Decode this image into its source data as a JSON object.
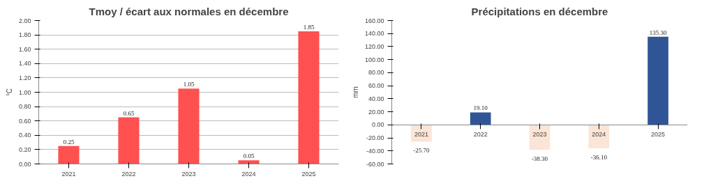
{
  "chart_data": [
    {
      "type": "bar",
      "title": "Tmoy / écart aux normales en décembre",
      "ylabel": "°C",
      "categories": [
        "2021",
        "2022",
        "2023",
        "2024",
        "2025"
      ],
      "values": [
        0.25,
        0.65,
        1.05,
        0.05,
        1.85
      ],
      "color": "#ff5050",
      "value_labels": [
        "0.25",
        "0.65",
        "1.05",
        "0.05",
        "1.85"
      ],
      "ylim": [
        0,
        2
      ],
      "yticks": [
        {
          "value": 0,
          "label": "0.00"
        },
        {
          "value": 0.2,
          "label": "0.20"
        },
        {
          "value": 0.4,
          "label": "0.40"
        },
        {
          "value": 0.6,
          "label": "0.60"
        },
        {
          "value": 0.8,
          "label": "0.80"
        },
        {
          "value": 1,
          "label": "1.00"
        },
        {
          "value": 1.2,
          "label": "1.20"
        },
        {
          "value": 1.4,
          "label": "1.40"
        },
        {
          "value": 1.6,
          "label": "1.60"
        },
        {
          "value": 1.8,
          "label": "1.80"
        },
        {
          "value": 2,
          "label": "2.00"
        }
      ],
      "grid": "y"
    },
    {
      "type": "bar",
      "title": "Précipitations en décembre",
      "ylabel": "mm",
      "categories": [
        "2021",
        "2022",
        "2023",
        "2024",
        "2025"
      ],
      "values": [
        -25.7,
        19.1,
        -38.3,
        -36.1,
        135.3
      ],
      "colors": [
        "#fbe5d6",
        "#2f5597",
        "#fbe5d6",
        "#fbe5d6",
        "#2f5597"
      ],
      "value_labels": [
        "-25.70",
        "19.10",
        "-38.30",
        "-36.10",
        "135.30"
      ],
      "ylim": [
        -60,
        160
      ],
      "yticks": [
        {
          "value": -60,
          "label": "-60.00"
        },
        {
          "value": -40,
          "label": "-40.00"
        },
        {
          "value": -20,
          "label": "-20.00"
        },
        {
          "value": 0,
          "label": "0.00"
        },
        {
          "value": 20,
          "label": "20.00"
        },
        {
          "value": 40,
          "label": "40.00"
        },
        {
          "value": 60,
          "label": "60.00"
        },
        {
          "value": 80,
          "label": "80.00"
        },
        {
          "value": 100,
          "label": "100.00"
        },
        {
          "value": 120,
          "label": "120.00"
        },
        {
          "value": 140,
          "label": "140.00"
        },
        {
          "value": 160,
          "label": "160.00"
        }
      ],
      "grid": false
    }
  ]
}
